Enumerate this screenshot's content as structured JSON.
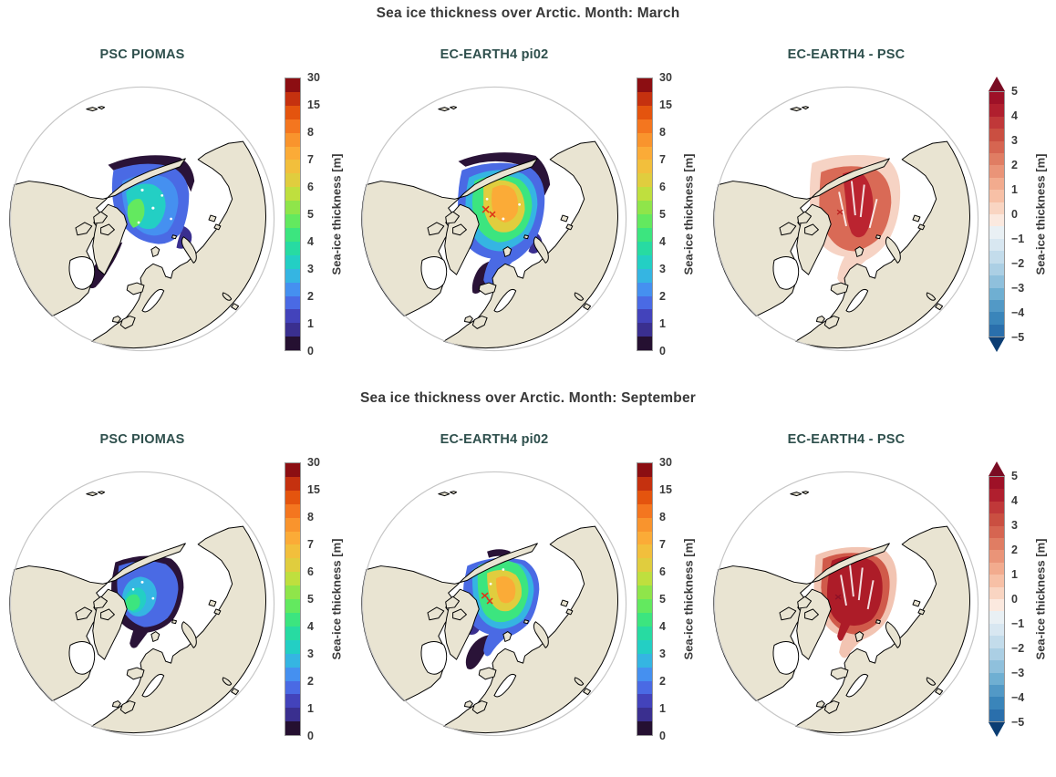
{
  "rows": [
    {
      "title": "Sea ice thickness over Arctic. Month: March",
      "panels": [
        {
          "title": "PSC PIOMAS",
          "colorbar": "thickness"
        },
        {
          "title": "EC-EARTH4 pi02",
          "colorbar": "thickness"
        },
        {
          "title": "EC-EARTH4 -  PSC",
          "colorbar": "difference"
        }
      ]
    },
    {
      "title": "Sea ice thickness over Arctic. Month: September",
      "panels": [
        {
          "title": "PSC PIOMAS",
          "colorbar": "thickness"
        },
        {
          "title": "EC-EARTH4 pi02",
          "colorbar": "thickness"
        },
        {
          "title": "EC-EARTH4 -  PSC",
          "colorbar": "difference"
        }
      ]
    }
  ],
  "colorbars": {
    "thickness": {
      "label": "Sea-ice thickness [m]",
      "ticks": [
        "30",
        "15",
        "8",
        "7",
        "6",
        "5",
        "4",
        "3",
        "2",
        "1",
        "0"
      ],
      "body_height": 300,
      "extend": false,
      "colors": [
        "#8c0e12",
        "#c5310f",
        "#e4540e",
        "#f4761f",
        "#f9942d",
        "#fbab37",
        "#f2bf3c",
        "#e0cd3e",
        "#bfdf3e",
        "#8fe54a",
        "#63e95f",
        "#3ce57f",
        "#27dba2",
        "#23cfc4",
        "#35b5e2",
        "#4590f0",
        "#4a6ae4",
        "#4343bb",
        "#3a2f8f",
        "#251031"
      ]
    },
    "difference": {
      "label": "Sea-ice thickness [m]",
      "ticks": [
        "5",
        "4",
        "3",
        "2",
        "1",
        "0",
        "−1",
        "−2",
        "−3",
        "−4",
        "−5"
      ],
      "body_height": 270,
      "extend": true,
      "arrow_top": "#7a0c23",
      "arrow_bottom": "#0b3d73",
      "colors": [
        "#9e1127",
        "#b01f2e",
        "#c03839",
        "#ca4f41",
        "#d66551",
        "#e07d63",
        "#ea9478",
        "#f2ab8e",
        "#f7c0a6",
        "#f9d5c2",
        "#fbe9df",
        "#e9f0f4",
        "#d8e7f1",
        "#c3dceb",
        "#abcfe4",
        "#8fc0dc",
        "#6fafd2",
        "#5299c6",
        "#3a85ba",
        "#2a6fac"
      ]
    }
  },
  "colors": {
    "background": "#ffffff",
    "land": "#e9e4d2",
    "coastline": "#000000",
    "ocean": "#ffffff",
    "globe_rim": "#c6c6c6",
    "row_title": "#383838",
    "panel_title": "#2e4f4c",
    "tick_text": "#3a3a3a"
  },
  "chart_data": [
    {
      "type": "heatmap",
      "title": "PSC PIOMAS",
      "group": "Sea ice thickness over Arctic. Month: March",
      "projection": "orthographic, North Pole centered",
      "variable": "Sea-ice thickness [m]",
      "scale_ticks": [
        0,
        1,
        2,
        3,
        4,
        5,
        6,
        7,
        8,
        15,
        30
      ],
      "scale_type": "nonlinear discrete (20 bins)",
      "field_summary": "March PIOMAS observed ice: basin covered 2-3 m (blue/cyan), maximum ~4-5 m (green) north of Greenland and Canadian Archipelago, <1 m (dark purple) fringes along Siberian shelf, Bering/Chukchi edge, Baffin Bay and East Greenland coast."
    },
    {
      "type": "heatmap",
      "title": "EC-EARTH4 pi02",
      "group": "Sea ice thickness over Arctic. Month: March",
      "projection": "orthographic, North Pole centered",
      "variable": "Sea-ice thickness [m]",
      "scale_ticks": [
        0,
        1,
        2,
        3,
        4,
        5,
        6,
        7,
        8,
        15,
        30
      ],
      "scale_type": "nonlinear discrete (20 bins)",
      "field_summary": "March model ice: thicker and more extensive than PIOMAS; core ~7-8 m (orange) near pole toward Canadian side, 4-6 m (green/yellow) over central basin, 1-3 m (blue) in Barents/Greenland seas, <1 m (dark purple) margins extending into Nordic seas."
    },
    {
      "type": "heatmap",
      "title": "EC-EARTH4 -  PSC",
      "group": "Sea ice thickness over Arctic. Month: March",
      "projection": "orthographic, North Pole centered",
      "variable": "Sea-ice thickness [m]",
      "scale_ticks": [
        -5,
        -4,
        -3,
        -2,
        -1,
        0,
        1,
        2,
        3,
        4,
        5
      ],
      "scale_type": "diverging RdBu, discrete, extend both",
      "field_summary": "March difference (model minus PIOMAS): positive nearly everywhere, +3 to +4 m (dark red) in a swath from the pole toward Kara side, +1 to +2 m (salmon/pink) elsewhere, near 0 at the ice margins."
    },
    {
      "type": "heatmap",
      "title": "PSC PIOMAS",
      "group": "Sea ice thickness over Arctic. Month: September",
      "projection": "orthographic, North Pole centered",
      "variable": "Sea-ice thickness [m]",
      "scale_ticks": [
        0,
        1,
        2,
        3,
        4,
        5,
        6,
        7,
        8,
        15,
        30
      ],
      "scale_type": "nonlinear discrete (20 bins)",
      "field_summary": "September PIOMAS: reduced pack, mostly 1-2 m (blue), ~3-4 m (cyan/green) north of Greenland-Canada, thin <1 m (dark purple) edge along Siberian side."
    },
    {
      "type": "heatmap",
      "title": "EC-EARTH4 pi02",
      "group": "Sea ice thickness over Arctic. Month: September",
      "projection": "orthographic, North Pole centered",
      "variable": "Sea-ice thickness [m]",
      "scale_ticks": [
        0,
        1,
        2,
        3,
        4,
        5,
        6,
        7,
        8,
        15,
        30
      ],
      "scale_type": "nonlinear discrete (20 bins)",
      "field_summary": "September model: still extensive; ~7 m (orange) core near pole, 4-6 m (green/yellow) ring, 2-3 m (cyan/blue) outer basin, dark thin-ice tail into the East Greenland Sea."
    },
    {
      "type": "heatmap",
      "title": "EC-EARTH4 -  PSC",
      "group": "Sea ice thickness over Arctic. Month: September",
      "projection": "orthographic, North Pole centered",
      "variable": "Sea-ice thickness [m]",
      "scale_ticks": [
        -5,
        -4,
        -3,
        -2,
        -1,
        0,
        1,
        2,
        3,
        4,
        5
      ],
      "scale_type": "diverging RdBu, discrete, extend both",
      "field_summary": "September difference: strongly positive, +3 to +5 m (dark red) over most of the central Arctic, +1 to +2 m (salmon) near margins."
    }
  ]
}
